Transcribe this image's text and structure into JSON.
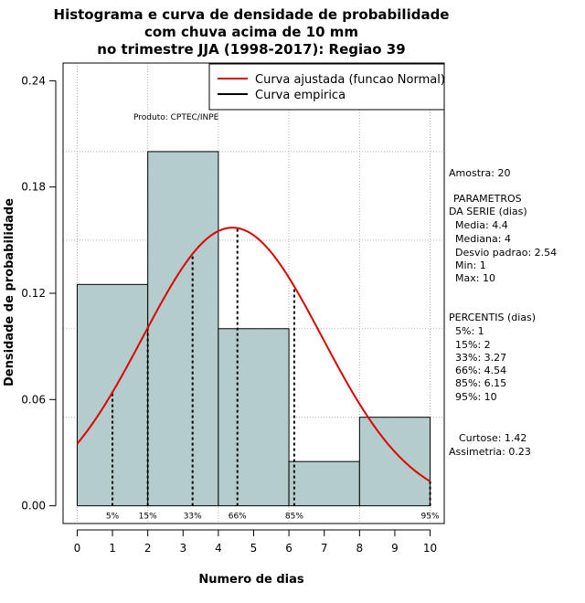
{
  "chart_data": {
    "type": "histogram",
    "title": [
      "Histograma e curva de densidade de probabilidade",
      "com chuva acima de 10 mm",
      "no trimestre JJA (1998-2017): Regiao 39"
    ],
    "xlabel": "Numero de dias",
    "ylabel": "Densidade de probabilidade",
    "xlim": [
      -0.4,
      10.4
    ],
    "ylim": [
      -0.01,
      0.25
    ],
    "xticks": [
      0,
      1,
      2,
      3,
      4,
      5,
      6,
      7,
      8,
      9,
      10
    ],
    "yticks": [
      0.0,
      0.06,
      0.12,
      0.18,
      0.24
    ],
    "ytick_labels": [
      "0.00",
      "0.06",
      "0.12",
      "0.18",
      "0.24"
    ],
    "grid_y": [
      0.05,
      0.1,
      0.15,
      0.2
    ],
    "grid_x": [
      0,
      2,
      4,
      6,
      8,
      10
    ],
    "bar_color": "#b4cccc",
    "curve_color": "#dd0000",
    "bins": [
      {
        "x0": 0,
        "x1": 2,
        "density": 0.125
      },
      {
        "x0": 2,
        "x1": 4,
        "density": 0.2
      },
      {
        "x0": 4,
        "x1": 6,
        "density": 0.1
      },
      {
        "x0": 6,
        "x1": 8,
        "density": 0.025
      },
      {
        "x0": 8,
        "x1": 10,
        "density": 0.05
      }
    ],
    "normal_fit": {
      "mean": 4.4,
      "sd": 2.54,
      "x_range": [
        0,
        10
      ]
    },
    "percentiles": [
      {
        "label": "5%",
        "x": 1
      },
      {
        "label": "15%",
        "x": 2
      },
      {
        "label": "33%",
        "x": 3.27
      },
      {
        "label": "66%",
        "x": 4.54
      },
      {
        "label": "85%",
        "x": 6.15
      },
      {
        "label": "95%",
        "x": 10
      }
    ],
    "legend": {
      "placement": "top-right",
      "entries": [
        {
          "label": "Curva ajustada (funcao Normal)",
          "color": "#dd0000"
        },
        {
          "label": "Curva empirica",
          "color": "#000000"
        }
      ]
    },
    "annotation": "Produto: CPTEC/INPE",
    "side_text": {
      "sample": "Amostra: 20",
      "params_title_1": "PARAMETROS",
      "params_title_2": "DA SERIE (dias)",
      "params": [
        "Media: 4.4",
        "Mediana: 4",
        "Desvio padrao: 2.54",
        "Min: 1",
        "Max: 10"
      ],
      "perc_title": "PERCENTIS (dias)",
      "perc_lines": [
        "5%: 1",
        "15%: 2",
        "33%: 3.27",
        "66%: 4.54",
        "85%: 6.15",
        "95%: 10"
      ],
      "curtose": "Curtose: 1.42",
      "assimetria": "Assimetria: 0.23"
    }
  }
}
